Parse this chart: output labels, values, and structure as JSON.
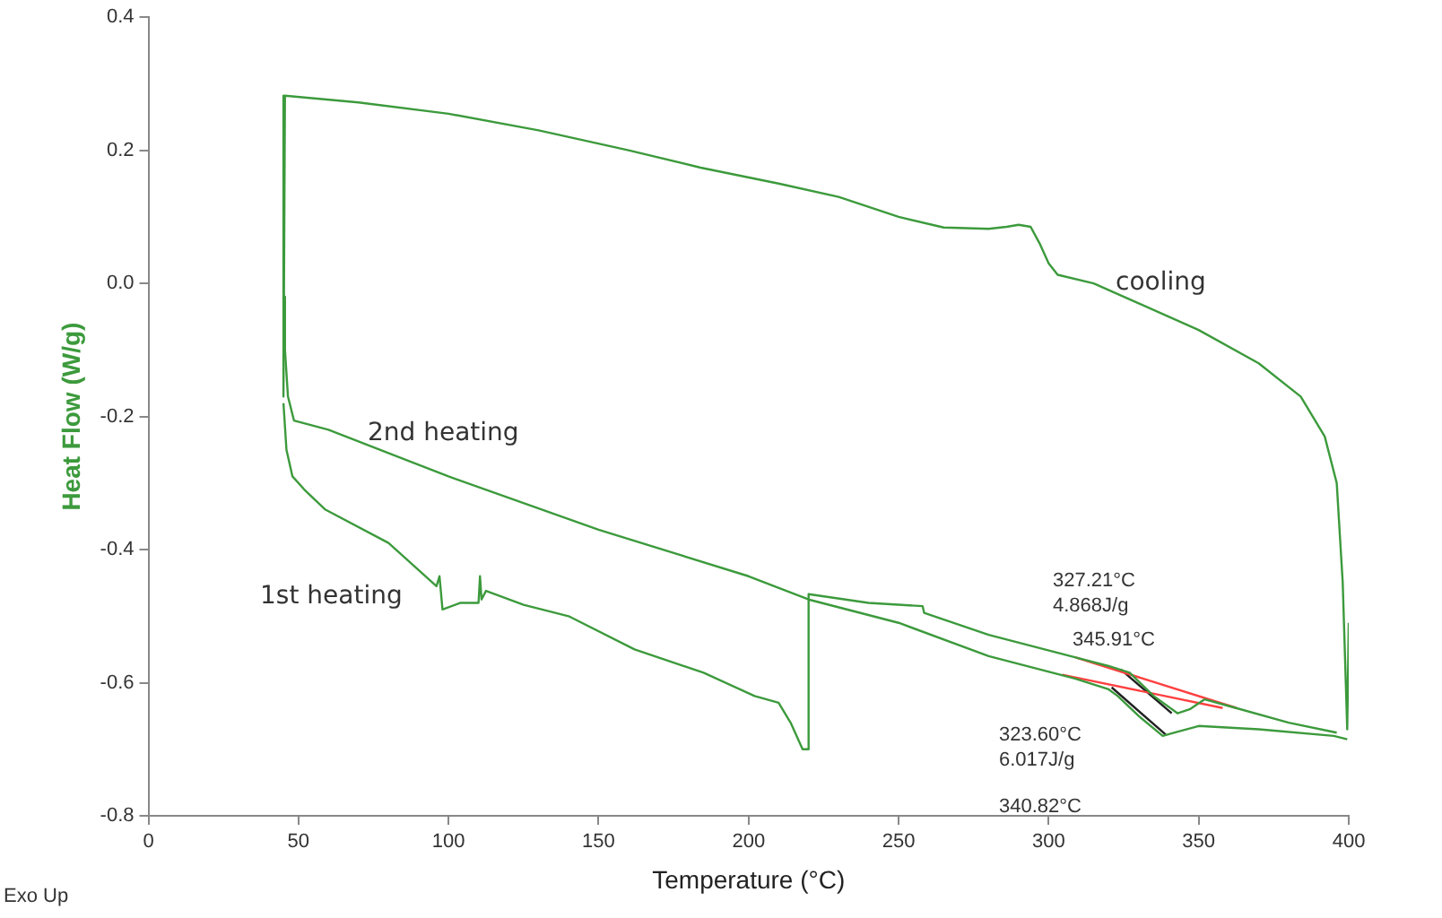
{
  "chart_data": {
    "type": "line",
    "xlabel": "Temperature (°C)",
    "ylabel": "Heat Flow (W/g)",
    "xlim": [
      0,
      400
    ],
    "xticks": [
      0,
      50,
      100,
      150,
      200,
      250,
      300,
      350,
      400
    ],
    "ylim": [
      -0.8,
      0.4
    ],
    "yticks": [
      {
        "value": -0.8,
        "label": "-0.8"
      },
      {
        "value": -0.6,
        "label": "-0.6"
      },
      {
        "value": -0.4,
        "label": "-0.4"
      },
      {
        "value": -0.2,
        "label": "-0.2"
      },
      {
        "value": 0,
        "label": "0.0"
      },
      {
        "value": 0.2,
        "label": "0.2"
      },
      {
        "value": 0.4,
        "label": "0.4"
      }
    ],
    "grid": false,
    "legend": false,
    "marker": "none",
    "line_style": "solid",
    "series": [
      {
        "name": "cooling",
        "color": "#3c9a3c",
        "x": [
          400,
          399.5,
          398,
          396,
          392,
          384,
          370,
          350,
          330,
          315,
          303,
          300,
          297,
          294,
          290,
          286,
          280,
          265,
          250,
          230,
          210,
          184,
          160,
          130,
          100,
          70,
          45.5,
          45,
          45
        ],
        "values": [
          -0.51,
          -0.67,
          -0.45,
          -0.3,
          -0.23,
          -0.17,
          -0.12,
          -0.07,
          -0.03,
          0.0,
          0.013,
          0.03,
          0.06,
          0.085,
          0.088,
          0.085,
          0.082,
          0.084,
          0.1,
          0.13,
          0.15,
          0.174,
          0.2,
          0.23,
          0.255,
          0.272,
          0.282,
          0.282,
          -0.17
        ]
      },
      {
        "name": "2nd heating",
        "color": "#3c9a3c",
        "x": [
          45,
          45.5,
          46.5,
          48.5,
          60,
          100,
          150,
          200,
          220,
          250,
          280,
          309,
          320,
          323,
          330,
          338,
          342,
          350,
          370,
          395,
          399.5
        ],
        "values": [
          -0.02,
          -0.1,
          -0.17,
          -0.206,
          -0.22,
          -0.29,
          -0.37,
          -0.44,
          -0.475,
          -0.51,
          -0.56,
          -0.594,
          -0.61,
          -0.62,
          -0.65,
          -0.68,
          -0.675,
          -0.665,
          -0.67,
          -0.68,
          -0.685
        ]
      },
      {
        "name": "1st heating",
        "color": "#3c9a3c",
        "x": [
          45,
          46,
          48,
          52,
          59,
          80,
          96,
          97,
          98,
          104,
          110,
          110.5,
          111,
          112.5,
          125,
          140,
          162,
          185,
          202,
          210,
          214,
          218,
          219.5,
          220,
          240,
          258,
          258.5,
          280,
          309,
          320,
          327,
          335,
          343,
          347,
          352,
          360,
          380,
          396
        ],
        "values": [
          -0.18,
          -0.25,
          -0.29,
          -0.31,
          -0.34,
          -0.39,
          -0.455,
          -0.44,
          -0.49,
          -0.48,
          -0.48,
          -0.44,
          -0.475,
          -0.462,
          -0.483,
          -0.5,
          -0.55,
          -0.585,
          -0.62,
          -0.63,
          -0.66,
          -0.7,
          -0.7,
          -0.467,
          -0.48,
          -0.485,
          -0.495,
          -0.528,
          -0.562,
          -0.575,
          -0.585,
          -0.62,
          -0.646,
          -0.64,
          -0.625,
          -0.635,
          -0.66,
          -0.675
        ]
      },
      {
        "color": "#ff4040",
        "x": [
          309,
          362.6
        ],
        "values": [
          -0.562,
          -0.638
        ]
      },
      {
        "color": "#ff4040",
        "x": [
          304.5,
          358
        ],
        "values": [
          -0.588,
          -0.638
        ]
      },
      {
        "color": "#202020",
        "x": [
          324,
          341
        ],
        "values": [
          -0.58,
          -0.646
        ]
      },
      {
        "color": "#202020",
        "x": [
          321,
          339
        ],
        "values": [
          -0.607,
          -0.678
        ]
      }
    ],
    "annotations": [
      "327.21°C",
      "4.868J/g",
      "345.91°C",
      "323.60°C",
      "6.017J/g",
      "340.82°C",
      "Exo Up"
    ]
  }
}
